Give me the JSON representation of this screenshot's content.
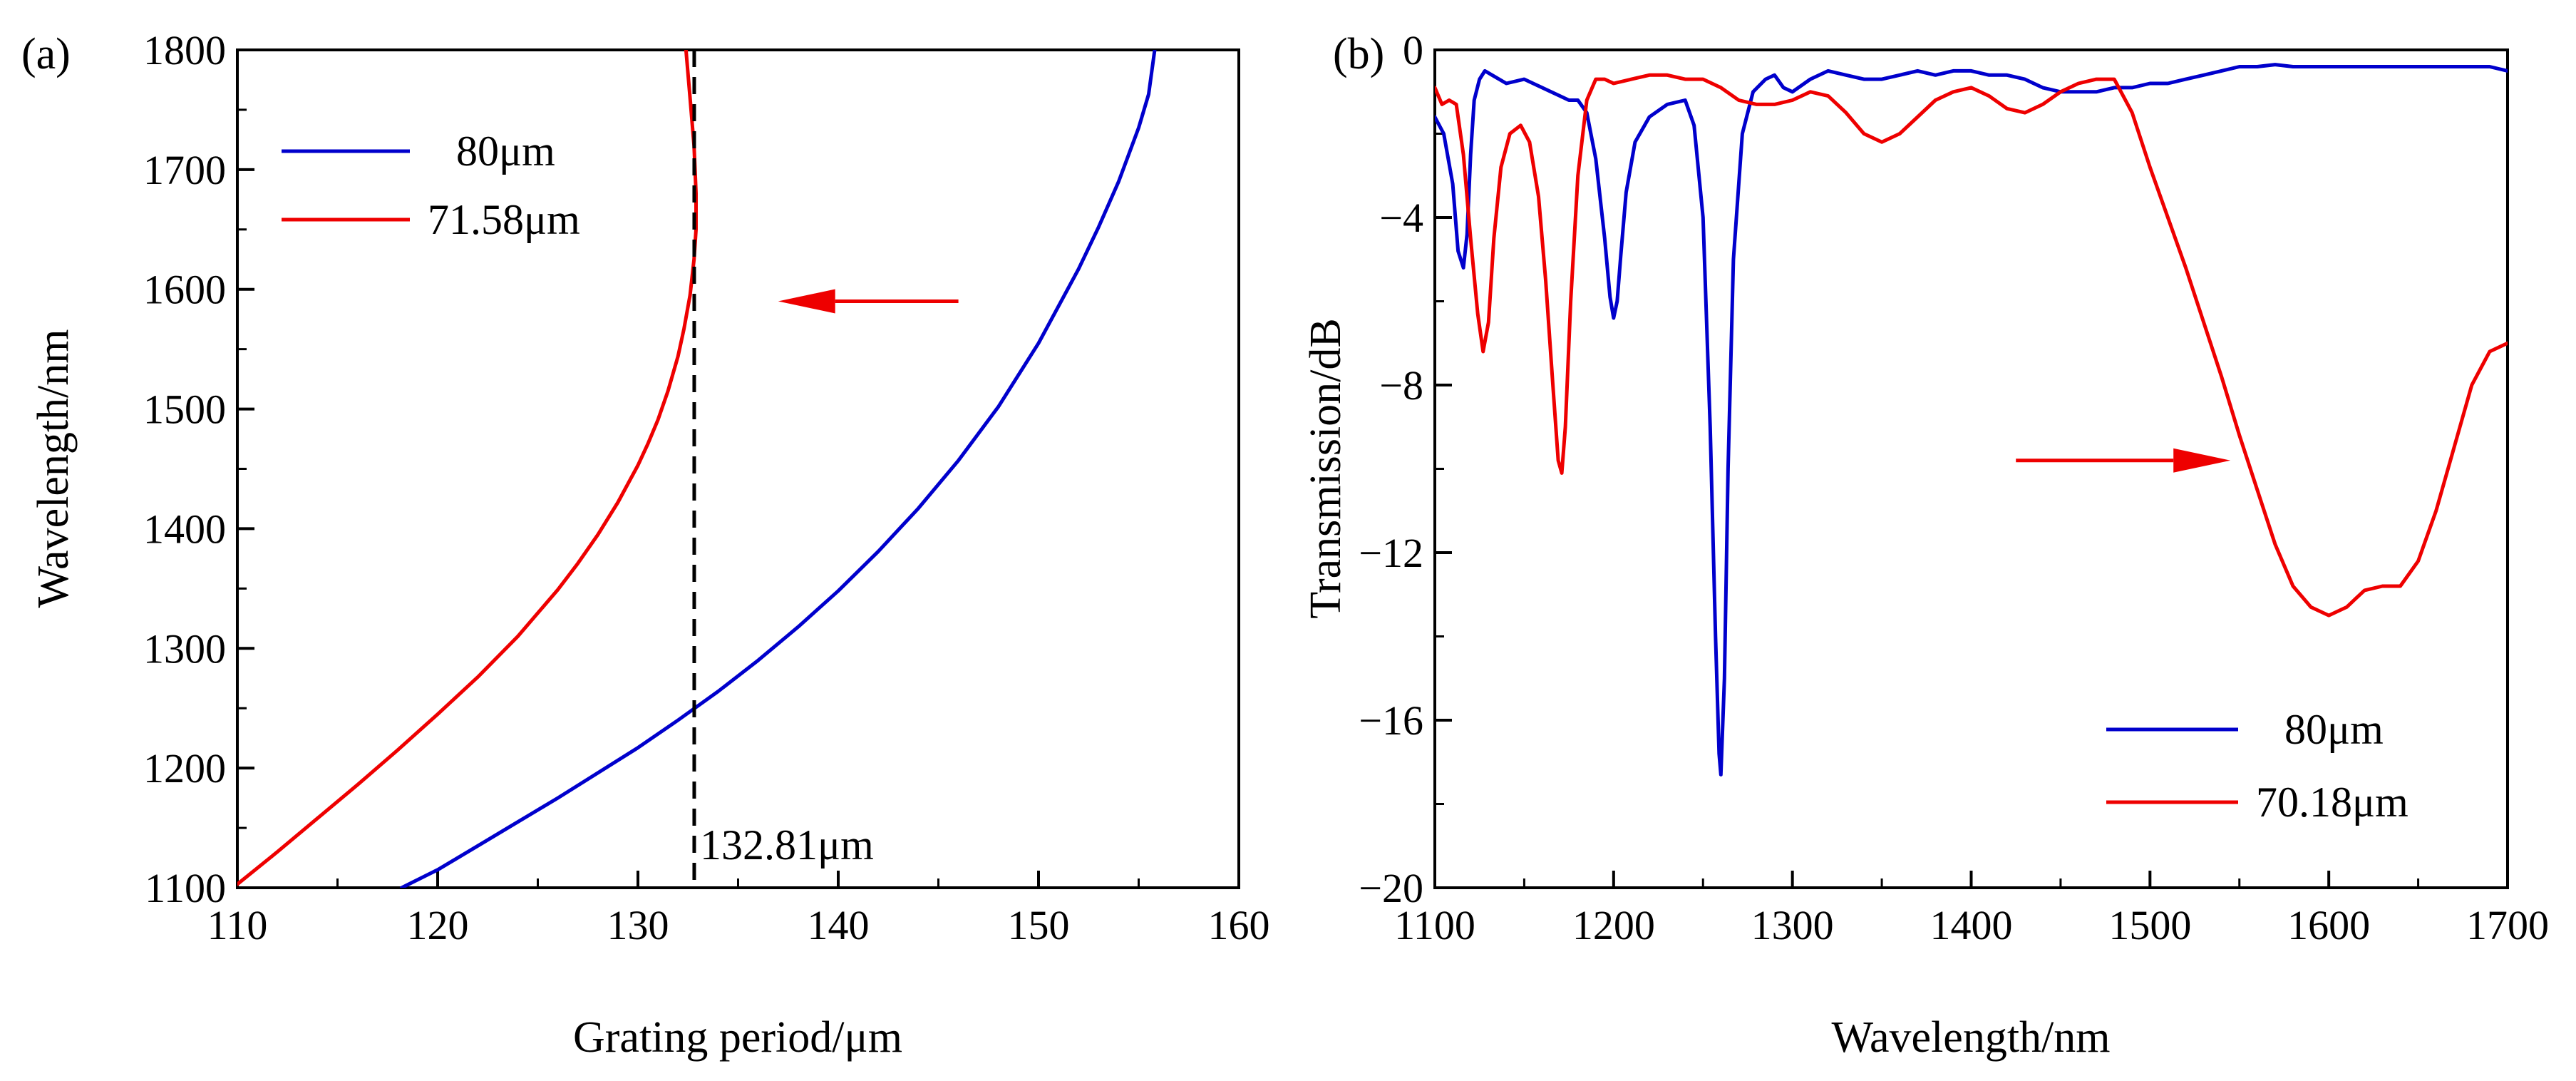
{
  "chart_data": [
    {
      "type": "line",
      "panel_label": "(a)",
      "xlabel": "Grating period/μm",
      "ylabel": "Wavelength/nm",
      "xlim": [
        110,
        160
      ],
      "ylim": [
        1100,
        1800
      ],
      "xticks": [
        110,
        120,
        130,
        140,
        150,
        160
      ],
      "yticks": [
        1100,
        1200,
        1300,
        1400,
        1500,
        1600,
        1700,
        1800
      ],
      "grid": false,
      "legend_position": "top-left",
      "series": [
        {
          "name": "80μm",
          "color": "#0000cc",
          "x": [
            118.2,
            120,
            122,
            124,
            126,
            128,
            130,
            132,
            134,
            136,
            138,
            140,
            142,
            144,
            146,
            148,
            150,
            152,
            153,
            154,
            155,
            155.5,
            155.8
          ],
          "y": [
            1100,
            1115,
            1135,
            1155,
            1175,
            1196,
            1217,
            1240,
            1264,
            1290,
            1318,
            1348,
            1381,
            1417,
            1457,
            1502,
            1555,
            1617,
            1652,
            1690,
            1735,
            1763,
            1800
          ]
        },
        {
          "name": "71.58μm",
          "color": "#ee0000",
          "x": [
            110,
            112,
            114,
            116,
            118,
            120,
            122,
            124,
            126,
            127,
            128,
            129,
            130,
            130.5,
            131,
            131.5,
            132,
            132.3,
            132.6,
            132.8,
            132.9,
            132.9,
            132.8,
            132.6,
            132.4
          ],
          "y": [
            1103,
            1130,
            1158,
            1186,
            1215,
            1245,
            1276,
            1310,
            1349,
            1371,
            1395,
            1422,
            1453,
            1471,
            1491,
            1515,
            1544,
            1567,
            1595,
            1625,
            1650,
            1680,
            1720,
            1760,
            1800
          ]
        }
      ],
      "reference_line": {
        "x": 132.81,
        "label": "132.81μm",
        "style": "dashed",
        "color": "#000000"
      },
      "arrow": {
        "direction": "left",
        "color": "#ee0000",
        "from": [
          146,
          1590
        ],
        "to": [
          137,
          1590
        ]
      }
    },
    {
      "type": "line",
      "panel_label": "(b)",
      "xlabel": "Wavelength/nm",
      "ylabel": "Transmission/dB",
      "xlim": [
        1100,
        1700
      ],
      "ylim": [
        -20,
        0
      ],
      "xticks": [
        1100,
        1200,
        1300,
        1400,
        1500,
        1600,
        1700
      ],
      "yticks": [
        -20,
        -16,
        -12,
        -8,
        -4,
        0
      ],
      "ytick_labels": [
        "−20",
        "−16",
        "−12",
        "−8",
        "−4",
        "0"
      ],
      "grid": false,
      "legend_position": "bottom-right",
      "series": [
        {
          "name": "80μm",
          "color": "#0000cc",
          "x": [
            1100,
            1105,
            1110,
            1113,
            1116,
            1118,
            1120,
            1122,
            1125,
            1128,
            1132,
            1140,
            1150,
            1160,
            1170,
            1175,
            1180,
            1185,
            1190,
            1195,
            1198,
            1200,
            1202,
            1204,
            1207,
            1212,
            1220,
            1230,
            1240,
            1245,
            1250,
            1254,
            1257,
            1259,
            1260,
            1262,
            1264,
            1267,
            1272,
            1278,
            1285,
            1290,
            1295,
            1300,
            1310,
            1320,
            1330,
            1340,
            1350,
            1360,
            1370,
            1380,
            1390,
            1400,
            1410,
            1420,
            1430,
            1440,
            1450,
            1460,
            1470,
            1480,
            1490,
            1500,
            1510,
            1520,
            1530,
            1540,
            1550,
            1560,
            1570,
            1580,
            1590,
            1600,
            1610,
            1620,
            1630,
            1640,
            1650,
            1660,
            1670,
            1680,
            1690,
            1700
          ],
          "y": [
            -1.6,
            -2.0,
            -3.2,
            -4.8,
            -5.2,
            -4.4,
            -2.5,
            -1.2,
            -0.7,
            -0.5,
            -0.6,
            -0.8,
            -0.7,
            -0.9,
            -1.1,
            -1.2,
            -1.2,
            -1.5,
            -2.6,
            -4.5,
            -5.9,
            -6.4,
            -6.0,
            -4.9,
            -3.4,
            -2.2,
            -1.6,
            -1.3,
            -1.2,
            -1.8,
            -4.0,
            -9.0,
            -14.0,
            -16.8,
            -17.3,
            -15.0,
            -10.0,
            -5.0,
            -2.0,
            -1.0,
            -0.7,
            -0.6,
            -0.9,
            -1.0,
            -0.7,
            -0.5,
            -0.6,
            -0.7,
            -0.7,
            -0.6,
            -0.5,
            -0.6,
            -0.5,
            -0.5,
            -0.6,
            -0.6,
            -0.7,
            -0.9,
            -1.0,
            -1.0,
            -1.0,
            -0.9,
            -0.9,
            -0.8,
            -0.8,
            -0.7,
            -0.6,
            -0.5,
            -0.4,
            -0.4,
            -0.35,
            -0.4,
            -0.4,
            -0.4,
            -0.4,
            -0.4,
            -0.4,
            -0.4,
            -0.4,
            -0.4,
            -0.4,
            -0.4,
            -0.4,
            -0.5
          ]
        },
        {
          "name": "70.18μm",
          "color": "#ee0000",
          "x": [
            1100,
            1104,
            1108,
            1112,
            1116,
            1120,
            1124,
            1127,
            1130,
            1133,
            1137,
            1142,
            1148,
            1153,
            1158,
            1162,
            1166,
            1169,
            1171,
            1173,
            1176,
            1180,
            1185,
            1190,
            1195,
            1200,
            1210,
            1220,
            1230,
            1240,
            1250,
            1260,
            1270,
            1280,
            1290,
            1300,
            1310,
            1320,
            1330,
            1340,
            1350,
            1360,
            1370,
            1380,
            1390,
            1400,
            1410,
            1420,
            1430,
            1440,
            1450,
            1460,
            1470,
            1480,
            1490,
            1500,
            1510,
            1520,
            1530,
            1540,
            1550,
            1560,
            1570,
            1580,
            1590,
            1600,
            1610,
            1615,
            1620,
            1630,
            1640,
            1650,
            1660,
            1670,
            1680,
            1690,
            1700
          ],
          "y": [
            -0.9,
            -1.3,
            -1.2,
            -1.3,
            -2.5,
            -4.5,
            -6.3,
            -7.2,
            -6.5,
            -4.5,
            -2.8,
            -2.0,
            -1.8,
            -2.2,
            -3.5,
            -5.5,
            -8.0,
            -9.8,
            -10.1,
            -9.0,
            -6.0,
            -3.0,
            -1.2,
            -0.7,
            -0.7,
            -0.8,
            -0.7,
            -0.6,
            -0.6,
            -0.7,
            -0.7,
            -0.9,
            -1.2,
            -1.3,
            -1.3,
            -1.2,
            -1.0,
            -1.1,
            -1.5,
            -2.0,
            -2.2,
            -2.0,
            -1.6,
            -1.2,
            -1.0,
            -0.9,
            -1.1,
            -1.4,
            -1.5,
            -1.3,
            -1.0,
            -0.8,
            -0.7,
            -0.7,
            -1.5,
            -2.8,
            -4.0,
            -5.2,
            -6.5,
            -7.8,
            -9.2,
            -10.5,
            -11.8,
            -12.8,
            -13.3,
            -13.5,
            -13.3,
            -13.1,
            -12.9,
            -12.8,
            -12.8,
            -12.2,
            -11.0,
            -9.5,
            -8.0,
            -7.2,
            -7.0
          ]
        }
      ],
      "arrow": {
        "direction": "right",
        "color": "#ee0000",
        "from": [
          1425,
          -9.8
        ],
        "to": [
          1545,
          -9.8
        ]
      }
    }
  ]
}
